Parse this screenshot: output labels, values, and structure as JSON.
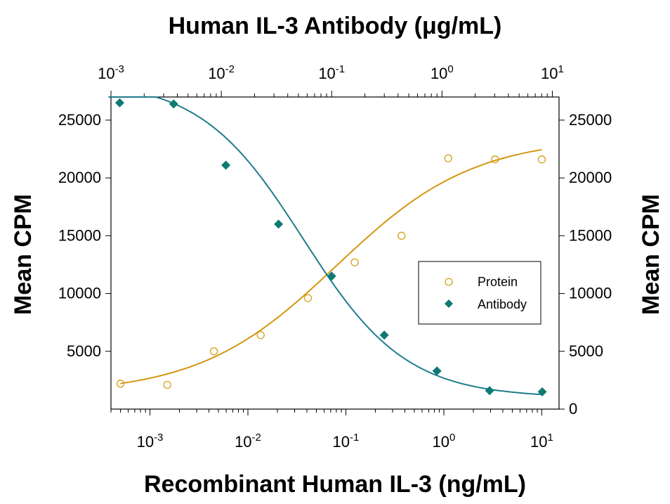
{
  "chart_data": {
    "type": "scatter",
    "title_top": "Human IL-3 Antibody (μg/mL)",
    "xlabel": "Recombinant Human IL-3 (ng/mL)",
    "ylabel_left": "Mean CPM",
    "ylabel_right": "Mean CPM",
    "x_scale": "log",
    "xlim": [
      0.0004,
      15
    ],
    "top_xlim": [
      0.001,
      11.5
    ],
    "ylim": [
      0,
      27000
    ],
    "x_ticks": [
      {
        "exp": "-3",
        "value": 0.001
      },
      {
        "exp": "-2",
        "value": 0.01
      },
      {
        "exp": "-1",
        "value": 0.1
      },
      {
        "exp": "0",
        "value": 1
      },
      {
        "exp": "1",
        "value": 10
      }
    ],
    "top_x_ticks": [
      {
        "exp": "-3",
        "value": 0.001
      },
      {
        "exp": "-2",
        "value": 0.01
      },
      {
        "exp": "-1",
        "value": 0.1
      },
      {
        "exp": "0",
        "value": 1
      },
      {
        "exp": "1",
        "value": 10
      }
    ],
    "y_ticks_left": [
      "5000",
      "10000",
      "15000",
      "20000",
      "25000"
    ],
    "y_ticks_right": [
      "0",
      "5000",
      "10000",
      "15000",
      "20000",
      "25000"
    ],
    "legend_position": "right-center",
    "series": [
      {
        "name": "Protein",
        "axis": "bottom",
        "marker": "open-circle",
        "color": "#D4A017",
        "curve_color": "#D4960F",
        "x": [
          0.0005,
          0.0015,
          0.0045,
          0.0135,
          0.041,
          0.123,
          0.37,
          1.11,
          3.33,
          10
        ],
        "y": [
          2200,
          2100,
          5000,
          6400,
          9600,
          12700,
          15000,
          21700,
          21600,
          21600
        ],
        "fit": {
          "bottom": 1300,
          "top": 23500,
          "ec50": 0.08,
          "hill": 0.62
        }
      },
      {
        "name": "Antibody",
        "axis": "top",
        "marker": "filled-diamond",
        "color": "#0F7A74",
        "curve_color": "#1E7D8C",
        "x": [
          0.0012,
          0.0037,
          0.011,
          0.033,
          0.1,
          0.3,
          0.9,
          2.7,
          8.1
        ],
        "y": [
          26500,
          26400,
          21100,
          16000,
          11500,
          6400,
          3300,
          1600,
          1500
        ],
        "fit": {
          "bottom": 1000,
          "top": 28500,
          "ec50": 0.055,
          "hill": 0.93
        }
      }
    ]
  }
}
